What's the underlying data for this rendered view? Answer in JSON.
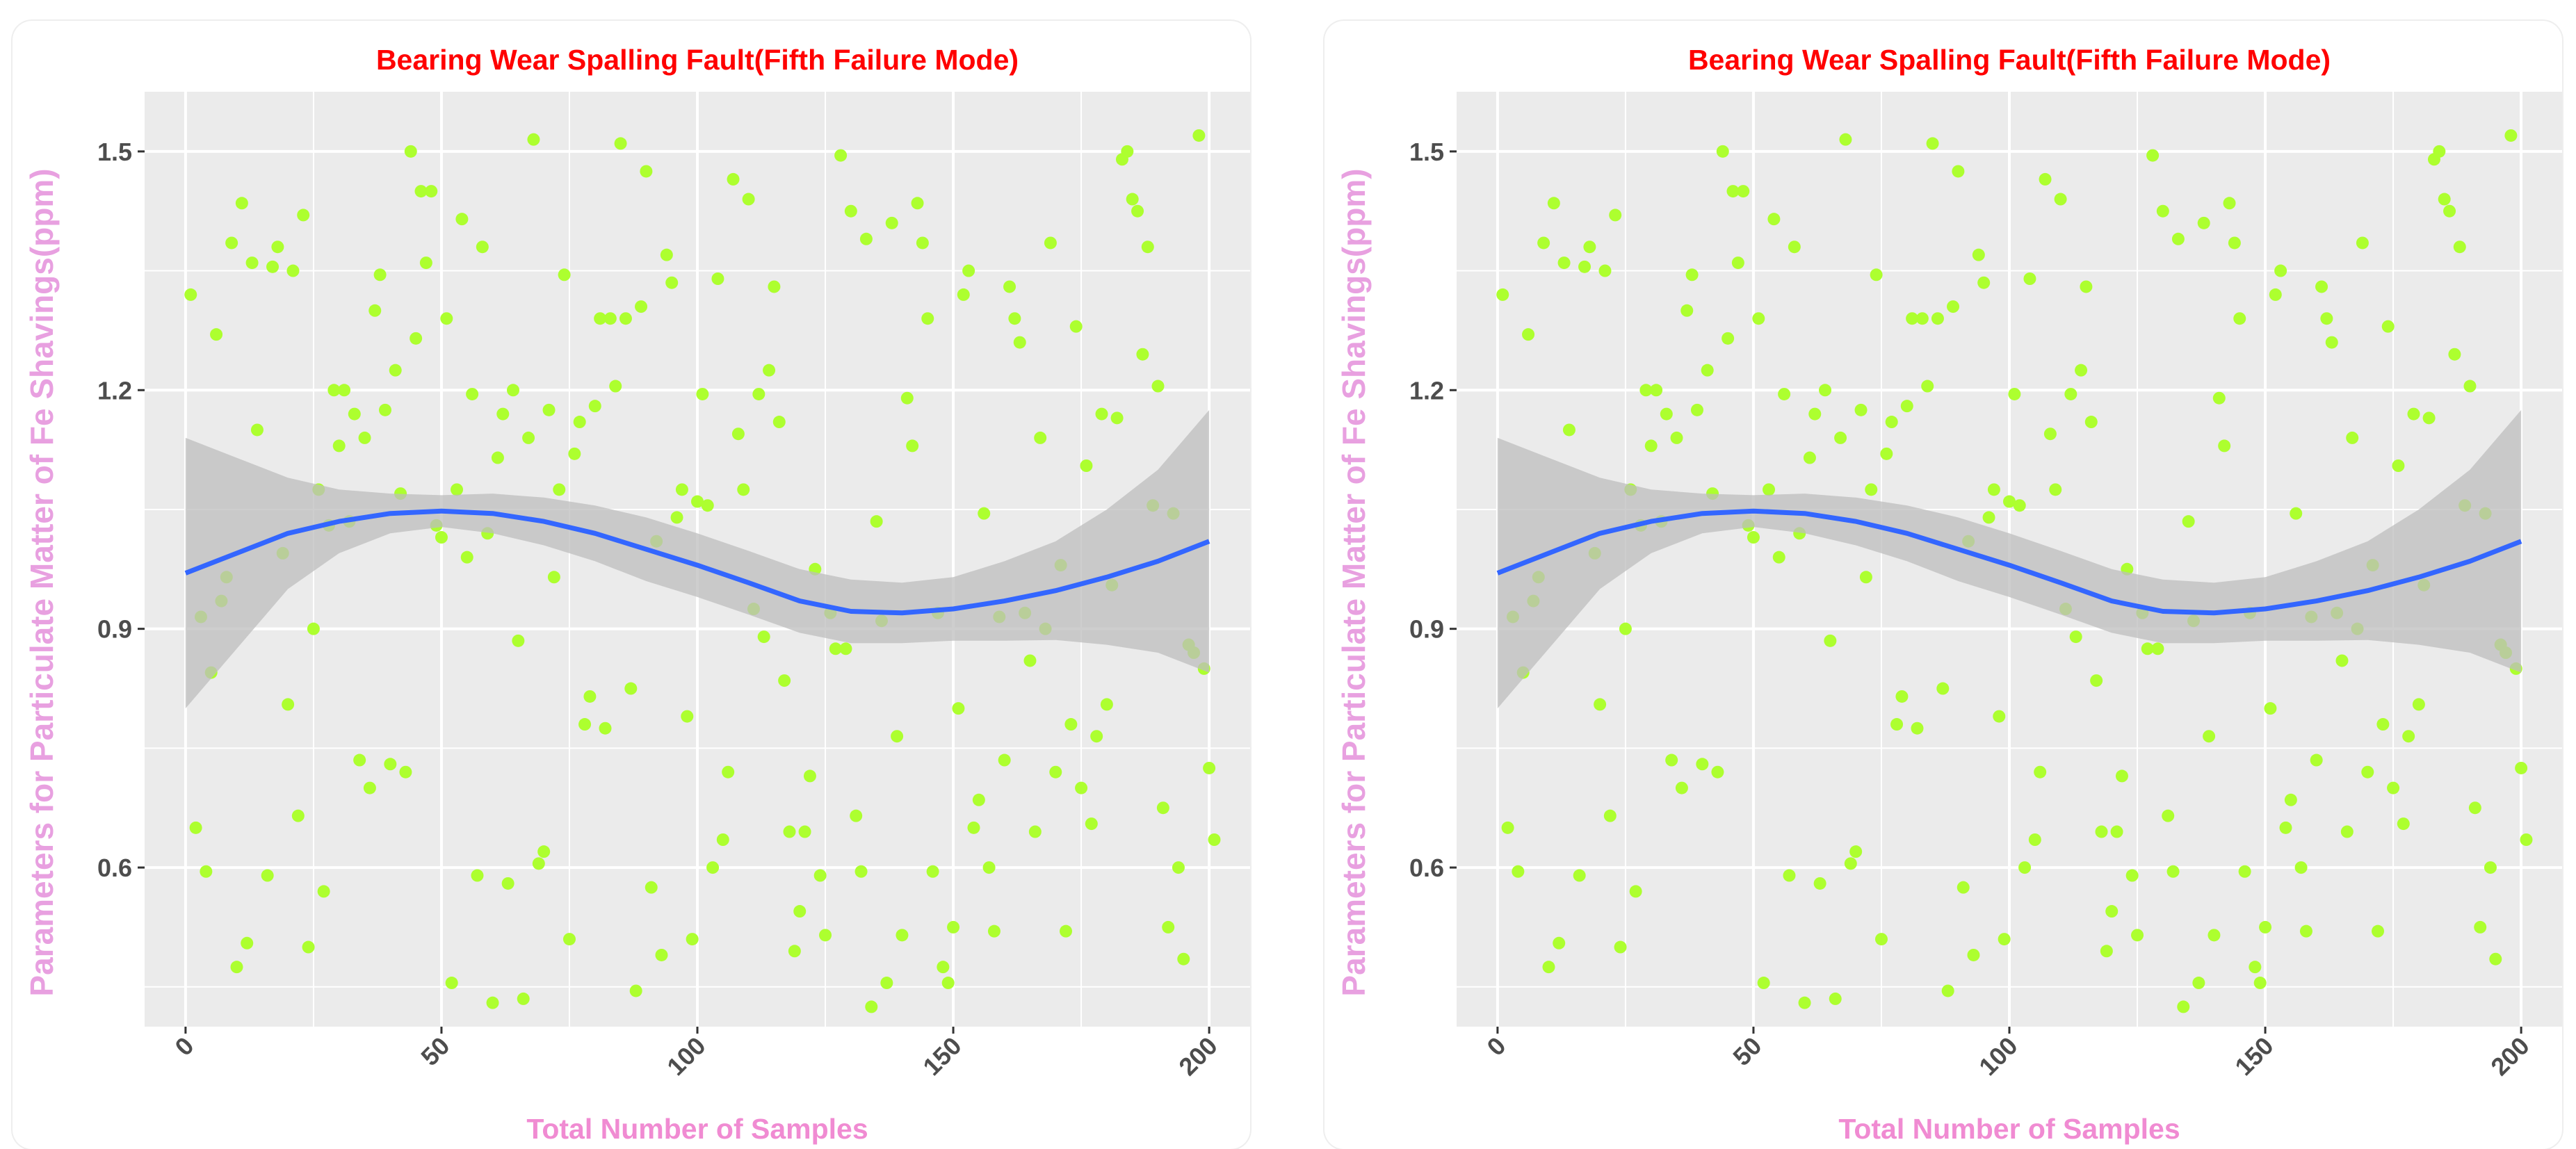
{
  "colors": {
    "panel_bg": "#ebebeb",
    "grid": "#ffffff",
    "points": "#adff2f",
    "line": "#3366ff",
    "band": "#bdbdbd",
    "title": "#ff0000",
    "axis_title": "#f08bd2",
    "tick_text": "#4d4d4d"
  },
  "chart_data": [
    {
      "type": "scatter",
      "title": "Bearing Wear Spalling Fault(Fifth Failure Mode)",
      "xlabel": "Total Number of Samples",
      "ylabel": "Parameters for Particulate Matter of Fe Shavings(ppm)",
      "xlim": [
        -8,
        208
      ],
      "ylim": [
        0.4,
        1.575
      ],
      "xticks": [
        "0",
        "50",
        "100",
        "150",
        "200"
      ],
      "xtick_values": [
        0,
        50,
        100,
        150,
        200
      ],
      "yticks": [
        "0.6",
        "0.9",
        "1.2",
        "1.5"
      ],
      "ytick_values": [
        0.6,
        0.9,
        1.2,
        1.5
      ],
      "grid": true,
      "points": [
        [
          1,
          1.32
        ],
        [
          2,
          0.65
        ],
        [
          3,
          0.915
        ],
        [
          4,
          0.595
        ],
        [
          5,
          0.845
        ],
        [
          6,
          1.27
        ],
        [
          7,
          0.935
        ],
        [
          8,
          0.965
        ],
        [
          9,
          1.385
        ],
        [
          10,
          0.475
        ],
        [
          11,
          1.435
        ],
        [
          12,
          0.505
        ],
        [
          13,
          1.36
        ],
        [
          14,
          1.15
        ],
        [
          16,
          0.59
        ],
        [
          17,
          1.355
        ],
        [
          18,
          1.38
        ],
        [
          19,
          0.995
        ],
        [
          20,
          0.805
        ],
        [
          21,
          1.35
        ],
        [
          22,
          0.665
        ],
        [
          23,
          1.42
        ],
        [
          24,
          0.5
        ],
        [
          25,
          0.9
        ],
        [
          26,
          1.075
        ],
        [
          27,
          0.57
        ],
        [
          28,
          1.03
        ],
        [
          29,
          1.2
        ],
        [
          30,
          1.13
        ],
        [
          31,
          1.2
        ],
        [
          32,
          1.035
        ],
        [
          33,
          1.17
        ],
        [
          34,
          0.735
        ],
        [
          35,
          1.14
        ],
        [
          36,
          0.7
        ],
        [
          37,
          1.3
        ],
        [
          38,
          1.345
        ],
        [
          39,
          1.175
        ],
        [
          40,
          0.73
        ],
        [
          41,
          1.225
        ],
        [
          42,
          1.07
        ],
        [
          43,
          0.72
        ],
        [
          44,
          1.5
        ],
        [
          45,
          1.265
        ],
        [
          46,
          1.45
        ],
        [
          47,
          1.36
        ],
        [
          48,
          1.45
        ],
        [
          49,
          1.03
        ],
        [
          50,
          1.015
        ],
        [
          51,
          1.29
        ],
        [
          52,
          0.455
        ],
        [
          53,
          1.075
        ],
        [
          54,
          1.415
        ],
        [
          55,
          0.99
        ],
        [
          56,
          1.195
        ],
        [
          57,
          0.59
        ],
        [
          58,
          1.38
        ],
        [
          59,
          1.02
        ],
        [
          60,
          0.43
        ],
        [
          61,
          1.115
        ],
        [
          62,
          1.17
        ],
        [
          63,
          0.58
        ],
        [
          64,
          1.2
        ],
        [
          65,
          0.885
        ],
        [
          66,
          0.435
        ],
        [
          67,
          1.14
        ],
        [
          68,
          1.515
        ],
        [
          69,
          0.605
        ],
        [
          70,
          0.62
        ],
        [
          71,
          1.175
        ],
        [
          72,
          0.965
        ],
        [
          73,
          1.075
        ],
        [
          74,
          1.345
        ],
        [
          75,
          0.51
        ],
        [
          76,
          1.12
        ],
        [
          77,
          1.16
        ],
        [
          78,
          0.78
        ],
        [
          79,
          0.815
        ],
        [
          80,
          1.18
        ],
        [
          81,
          1.29
        ],
        [
          82,
          0.775
        ],
        [
          83,
          1.29
        ],
        [
          84,
          1.205
        ],
        [
          85,
          1.51
        ],
        [
          86,
          1.29
        ],
        [
          87,
          0.825
        ],
        [
          88,
          0.445
        ],
        [
          89,
          1.305
        ],
        [
          90,
          1.475
        ],
        [
          91,
          0.575
        ],
        [
          92,
          1.01
        ],
        [
          93,
          0.49
        ],
        [
          94,
          1.37
        ],
        [
          95,
          1.335
        ],
        [
          96,
          1.04
        ],
        [
          97,
          1.075
        ],
        [
          98,
          0.79
        ],
        [
          99,
          0.51
        ],
        [
          100,
          1.06
        ],
        [
          101,
          1.195
        ],
        [
          102,
          1.055
        ],
        [
          103,
          0.6
        ],
        [
          104,
          1.34
        ],
        [
          105,
          0.635
        ],
        [
          106,
          0.72
        ],
        [
          107,
          1.465
        ],
        [
          108,
          1.145
        ],
        [
          109,
          1.075
        ],
        [
          110,
          1.44
        ],
        [
          111,
          0.925
        ],
        [
          112,
          1.195
        ],
        [
          113,
          0.89
        ],
        [
          114,
          1.225
        ],
        [
          115,
          1.33
        ],
        [
          116,
          1.16
        ],
        [
          117,
          0.835
        ],
        [
          118,
          0.645
        ],
        [
          119,
          0.495
        ],
        [
          120,
          0.545
        ],
        [
          121,
          0.645
        ],
        [
          122,
          0.715
        ],
        [
          123,
          0.975
        ],
        [
          124,
          0.59
        ],
        [
          125,
          0.515
        ],
        [
          126,
          0.92
        ],
        [
          127,
          0.875
        ],
        [
          128,
          1.495
        ],
        [
          129,
          0.875
        ],
        [
          130,
          1.425
        ],
        [
          131,
          0.665
        ],
        [
          132,
          0.595
        ],
        [
          133,
          1.39
        ],
        [
          134,
          0.425
        ],
        [
          135,
          1.035
        ],
        [
          136,
          0.91
        ],
        [
          137,
          0.455
        ],
        [
          138,
          1.41
        ],
        [
          139,
          0.765
        ],
        [
          140,
          0.515
        ],
        [
          141,
          1.19
        ],
        [
          142,
          1.13
        ],
        [
          143,
          1.435
        ],
        [
          144,
          1.385
        ],
        [
          145,
          1.29
        ],
        [
          146,
          0.595
        ],
        [
          147,
          0.92
        ],
        [
          148,
          0.475
        ],
        [
          149,
          0.455
        ],
        [
          150,
          0.525
        ],
        [
          151,
          0.8
        ],
        [
          152,
          1.32
        ],
        [
          153,
          1.35
        ],
        [
          154,
          0.65
        ],
        [
          155,
          0.685
        ],
        [
          156,
          1.045
        ],
        [
          157,
          0.6
        ],
        [
          158,
          0.52
        ],
        [
          159,
          0.915
        ],
        [
          160,
          0.735
        ],
        [
          161,
          1.33
        ],
        [
          162,
          1.29
        ],
        [
          163,
          1.26
        ],
        [
          164,
          0.92
        ],
        [
          165,
          0.86
        ],
        [
          166,
          0.645
        ],
        [
          167,
          1.14
        ],
        [
          168,
          0.9
        ],
        [
          169,
          1.385
        ],
        [
          170,
          0.72
        ],
        [
          171,
          0.98
        ],
        [
          172,
          0.52
        ],
        [
          173,
          0.78
        ],
        [
          174,
          1.28
        ],
        [
          175,
          0.7
        ],
        [
          176,
          1.105
        ],
        [
          177,
          0.655
        ],
        [
          178,
          0.765
        ],
        [
          179,
          1.17
        ],
        [
          180,
          0.805
        ],
        [
          181,
          0.955
        ],
        [
          182,
          1.165
        ],
        [
          183,
          1.49
        ],
        [
          184,
          1.5
        ],
        [
          185,
          1.44
        ],
        [
          186,
          1.425
        ],
        [
          187,
          1.245
        ],
        [
          188,
          1.38
        ],
        [
          189,
          1.055
        ],
        [
          190,
          1.205
        ],
        [
          191,
          0.675
        ],
        [
          192,
          0.525
        ],
        [
          193,
          1.045
        ],
        [
          194,
          0.6
        ],
        [
          195,
          0.485
        ],
        [
          196,
          0.88
        ],
        [
          197,
          0.87
        ],
        [
          198,
          1.52
        ],
        [
          199,
          0.85
        ],
        [
          200,
          0.725
        ],
        [
          201,
          0.635
        ]
      ],
      "smooth_line": [
        [
          0,
          0.97
        ],
        [
          10,
          0.995
        ],
        [
          20,
          1.02
        ],
        [
          30,
          1.035
        ],
        [
          40,
          1.045
        ],
        [
          50,
          1.048
        ],
        [
          60,
          1.045
        ],
        [
          70,
          1.035
        ],
        [
          80,
          1.02
        ],
        [
          90,
          1.0
        ],
        [
          100,
          0.98
        ],
        [
          110,
          0.958
        ],
        [
          120,
          0.935
        ],
        [
          130,
          0.922
        ],
        [
          140,
          0.92
        ],
        [
          150,
          0.925
        ],
        [
          160,
          0.935
        ],
        [
          170,
          0.948
        ],
        [
          180,
          0.965
        ],
        [
          190,
          0.985
        ],
        [
          200,
          1.01
        ]
      ],
      "band_upper": [
        [
          0,
          1.14
        ],
        [
          10,
          1.115
        ],
        [
          20,
          1.09
        ],
        [
          30,
          1.075
        ],
        [
          40,
          1.07
        ],
        [
          50,
          1.068
        ],
        [
          60,
          1.07
        ],
        [
          70,
          1.065
        ],
        [
          80,
          1.055
        ],
        [
          90,
          1.04
        ],
        [
          100,
          1.02
        ],
        [
          110,
          0.998
        ],
        [
          120,
          0.975
        ],
        [
          130,
          0.962
        ],
        [
          140,
          0.958
        ],
        [
          150,
          0.965
        ],
        [
          160,
          0.985
        ],
        [
          170,
          1.01
        ],
        [
          180,
          1.05
        ],
        [
          190,
          1.1
        ],
        [
          200,
          1.175
        ]
      ],
      "band_lower": [
        [
          0,
          0.8
        ],
        [
          10,
          0.875
        ],
        [
          20,
          0.95
        ],
        [
          30,
          0.995
        ],
        [
          40,
          1.02
        ],
        [
          50,
          1.028
        ],
        [
          60,
          1.02
        ],
        [
          70,
          1.005
        ],
        [
          80,
          0.985
        ],
        [
          90,
          0.96
        ],
        [
          100,
          0.94
        ],
        [
          110,
          0.918
        ],
        [
          120,
          0.895
        ],
        [
          130,
          0.882
        ],
        [
          140,
          0.882
        ],
        [
          150,
          0.885
        ],
        [
          160,
          0.885
        ],
        [
          170,
          0.886
        ],
        [
          180,
          0.88
        ],
        [
          190,
          0.87
        ],
        [
          200,
          0.845
        ]
      ]
    },
    {
      "type": "scatter",
      "title": "Bearing Wear Spalling Fault(Fifth Failure Mode)",
      "xlabel": "Total Number of Samples",
      "ylabel": "Parameters for Particulate Matter of Fe Shavings(ppm)",
      "xlim": [
        -8,
        208
      ],
      "ylim": [
        0.4,
        1.575
      ],
      "xticks": [
        "0",
        "50",
        "100",
        "150",
        "200"
      ],
      "xtick_values": [
        0,
        50,
        100,
        150,
        200
      ],
      "yticks": [
        "0.6",
        "0.9",
        "1.2",
        "1.5"
      ],
      "ytick_values": [
        0.6,
        0.9,
        1.2,
        1.5
      ],
      "grid": true,
      "points": "same_as_first",
      "smooth_line": "same_as_first",
      "band_upper": "same_as_first",
      "band_lower": "same_as_first"
    }
  ]
}
